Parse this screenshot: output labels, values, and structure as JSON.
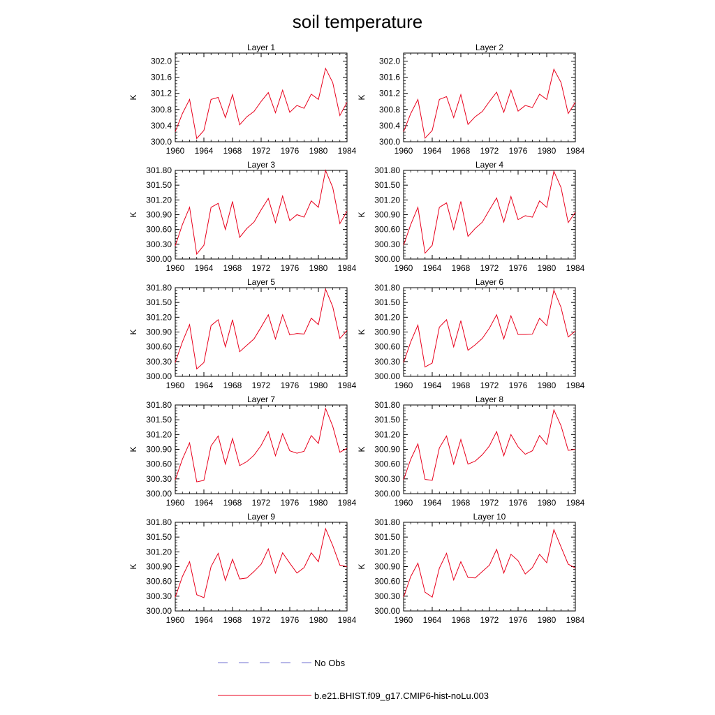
{
  "title": "soil temperature",
  "colors": {
    "model_line": "#e8001c",
    "obs_line": "#7070d0",
    "axis": "#000000",
    "background": "#ffffff"
  },
  "legend": {
    "obs_label": "No Obs",
    "model_label": "b.e21.BHIST.f09_g17.CMIP6-hist-noLu.003",
    "obs_style": "dashed",
    "model_style": "solid",
    "placement": "bottom-center"
  },
  "chart_data": [
    {
      "type": "line",
      "title": "Layer 1",
      "ylabel": "K",
      "xlim": [
        1960,
        1984
      ],
      "ylim": [
        300.0,
        302.2
      ],
      "yticks": [
        "300.0",
        "300.4",
        "300.8",
        "301.2",
        "301.6",
        "302.0"
      ],
      "xticks": [
        "1960",
        "1964",
        "1968",
        "1972",
        "1976",
        "1980",
        "1984"
      ],
      "x": [
        1960,
        1961,
        1962,
        1963,
        1964,
        1965,
        1966,
        1967,
        1968,
        1969,
        1970,
        1971,
        1972,
        1973,
        1974,
        1975,
        1976,
        1977,
        1978,
        1979,
        1980,
        1981,
        1982,
        1983,
        1984
      ],
      "series": [
        {
          "name": "b.e21.BHIST.f09_g17.CMIP6-hist-noLu.003",
          "values": [
            300.25,
            300.7,
            301.05,
            300.08,
            300.28,
            301.05,
            301.1,
            300.6,
            301.17,
            300.42,
            300.62,
            300.75,
            301.0,
            301.22,
            300.72,
            301.28,
            300.73,
            300.9,
            300.83,
            301.18,
            301.05,
            301.82,
            301.47,
            300.65,
            300.98
          ]
        }
      ]
    },
    {
      "type": "line",
      "title": "Layer 2",
      "ylabel": "K",
      "xlim": [
        1960,
        1984
      ],
      "ylim": [
        300.0,
        302.2
      ],
      "yticks": [
        "300.0",
        "300.4",
        "300.8",
        "301.2",
        "301.6",
        "302.0"
      ],
      "xticks": [
        "1960",
        "1964",
        "1968",
        "1972",
        "1976",
        "1980",
        "1984"
      ],
      "x": [
        1960,
        1961,
        1962,
        1963,
        1964,
        1965,
        1966,
        1967,
        1968,
        1969,
        1970,
        1971,
        1972,
        1973,
        1974,
        1975,
        1976,
        1977,
        1978,
        1979,
        1980,
        1981,
        1982,
        1983,
        1984
      ],
      "series": [
        {
          "name": "b.e21.BHIST.f09_g17.CMIP6-hist-noLu.003",
          "values": [
            300.25,
            300.7,
            301.05,
            300.09,
            300.28,
            301.05,
            301.12,
            300.6,
            301.17,
            300.43,
            300.62,
            300.75,
            301.0,
            301.23,
            300.73,
            301.28,
            300.76,
            300.9,
            300.85,
            301.18,
            301.05,
            301.8,
            301.47,
            300.7,
            300.98
          ]
        }
      ]
    },
    {
      "type": "line",
      "title": "Layer 3",
      "ylabel": "K",
      "xlim": [
        1960,
        1984
      ],
      "ylim": [
        300.0,
        301.8
      ],
      "yticks": [
        "300.00",
        "300.30",
        "300.60",
        "300.90",
        "301.20",
        "301.50",
        "301.80"
      ],
      "xticks": [
        "1960",
        "1964",
        "1968",
        "1972",
        "1976",
        "1980",
        "1984"
      ],
      "x": [
        1960,
        1961,
        1962,
        1963,
        1964,
        1965,
        1966,
        1967,
        1968,
        1969,
        1970,
        1971,
        1972,
        1973,
        1974,
        1975,
        1976,
        1977,
        1978,
        1979,
        1980,
        1981,
        1982,
        1983,
        1984
      ],
      "series": [
        {
          "name": "b.e21.BHIST.f09_g17.CMIP6-hist-noLu.003",
          "values": [
            300.27,
            300.7,
            301.05,
            300.1,
            300.28,
            301.05,
            301.13,
            300.6,
            301.17,
            300.44,
            300.62,
            300.75,
            301.0,
            301.23,
            300.74,
            301.28,
            300.78,
            300.9,
            300.85,
            301.18,
            301.05,
            301.8,
            301.45,
            300.72,
            300.97
          ]
        }
      ]
    },
    {
      "type": "line",
      "title": "Layer 4",
      "ylabel": "K",
      "xlim": [
        1960,
        1984
      ],
      "ylim": [
        300.0,
        301.8
      ],
      "yticks": [
        "300.00",
        "300.30",
        "300.60",
        "300.90",
        "301.20",
        "301.50",
        "301.80"
      ],
      "xticks": [
        "1960",
        "1964",
        "1968",
        "1972",
        "1976",
        "1980",
        "1984"
      ],
      "x": [
        1960,
        1961,
        1962,
        1963,
        1964,
        1965,
        1966,
        1967,
        1968,
        1969,
        1970,
        1971,
        1972,
        1973,
        1974,
        1975,
        1976,
        1977,
        1978,
        1979,
        1980,
        1981,
        1982,
        1983,
        1984
      ],
      "series": [
        {
          "name": "b.e21.BHIST.f09_g17.CMIP6-hist-noLu.003",
          "values": [
            300.28,
            300.7,
            301.05,
            300.12,
            300.28,
            301.05,
            301.14,
            300.6,
            301.17,
            300.46,
            300.62,
            300.75,
            301.0,
            301.24,
            300.75,
            301.27,
            300.8,
            300.88,
            300.85,
            301.18,
            301.05,
            301.78,
            301.45,
            300.74,
            300.95
          ]
        }
      ]
    },
    {
      "type": "line",
      "title": "Layer 5",
      "ylabel": "K",
      "xlim": [
        1960,
        1984
      ],
      "ylim": [
        300.0,
        301.8
      ],
      "yticks": [
        "300.00",
        "300.30",
        "300.60",
        "300.90",
        "301.20",
        "301.50",
        "301.80"
      ],
      "xticks": [
        "1960",
        "1964",
        "1968",
        "1972",
        "1976",
        "1980",
        "1984"
      ],
      "x": [
        1960,
        1961,
        1962,
        1963,
        1964,
        1965,
        1966,
        1967,
        1968,
        1969,
        1970,
        1971,
        1972,
        1973,
        1974,
        1975,
        1976,
        1977,
        1978,
        1979,
        1980,
        1981,
        1982,
        1983,
        1984
      ],
      "series": [
        {
          "name": "b.e21.BHIST.f09_g17.CMIP6-hist-noLu.003",
          "values": [
            300.28,
            300.7,
            301.05,
            300.15,
            300.28,
            301.03,
            301.15,
            300.6,
            301.15,
            300.5,
            300.63,
            300.76,
            301.0,
            301.25,
            300.76,
            301.25,
            300.84,
            300.87,
            300.86,
            301.18,
            301.05,
            301.77,
            301.42,
            300.77,
            300.93
          ]
        }
      ]
    },
    {
      "type": "line",
      "title": "Layer 6",
      "ylabel": "K",
      "xlim": [
        1960,
        1984
      ],
      "ylim": [
        300.0,
        301.8
      ],
      "yticks": [
        "300.00",
        "300.30",
        "300.60",
        "300.90",
        "301.20",
        "301.50",
        "301.80"
      ],
      "xticks": [
        "1960",
        "1964",
        "1968",
        "1972",
        "1976",
        "1980",
        "1984"
      ],
      "x": [
        1960,
        1961,
        1962,
        1963,
        1964,
        1965,
        1966,
        1967,
        1968,
        1969,
        1970,
        1971,
        1972,
        1973,
        1974,
        1975,
        1976,
        1977,
        1978,
        1979,
        1980,
        1981,
        1982,
        1983,
        1984
      ],
      "series": [
        {
          "name": "b.e21.BHIST.f09_g17.CMIP6-hist-noLu.003",
          "values": [
            300.28,
            300.7,
            301.04,
            300.19,
            300.27,
            301.0,
            301.15,
            300.6,
            301.13,
            300.53,
            300.64,
            300.77,
            300.98,
            301.25,
            300.76,
            301.23,
            300.85,
            300.85,
            300.86,
            301.18,
            301.03,
            301.75,
            301.4,
            300.8,
            300.92
          ]
        }
      ]
    },
    {
      "type": "line",
      "title": "Layer 7",
      "ylabel": "K",
      "xlim": [
        1960,
        1984
      ],
      "ylim": [
        300.0,
        301.8
      ],
      "yticks": [
        "300.00",
        "300.30",
        "300.60",
        "300.90",
        "301.20",
        "301.50",
        "301.80"
      ],
      "xticks": [
        "1960",
        "1964",
        "1968",
        "1972",
        "1976",
        "1980",
        "1984"
      ],
      "x": [
        1960,
        1961,
        1962,
        1963,
        1964,
        1965,
        1966,
        1967,
        1968,
        1969,
        1970,
        1971,
        1972,
        1973,
        1974,
        1975,
        1976,
        1977,
        1978,
        1979,
        1980,
        1981,
        1982,
        1983,
        1984
      ],
      "series": [
        {
          "name": "b.e21.BHIST.f09_g17.CMIP6-hist-noLu.003",
          "values": [
            300.28,
            300.7,
            301.03,
            300.24,
            300.27,
            300.97,
            301.17,
            300.6,
            301.12,
            300.57,
            300.65,
            300.78,
            300.98,
            301.26,
            300.77,
            301.22,
            300.87,
            300.82,
            300.86,
            301.18,
            301.02,
            301.73,
            301.37,
            300.84,
            300.92
          ]
        }
      ]
    },
    {
      "type": "line",
      "title": "Layer 8",
      "ylabel": "K",
      "xlim": [
        1960,
        1984
      ],
      "ylim": [
        300.0,
        301.8
      ],
      "yticks": [
        "300.00",
        "300.30",
        "300.60",
        "300.90",
        "301.20",
        "301.50",
        "301.80"
      ],
      "xticks": [
        "1960",
        "1964",
        "1968",
        "1972",
        "1976",
        "1980",
        "1984"
      ],
      "x": [
        1960,
        1961,
        1962,
        1963,
        1964,
        1965,
        1966,
        1967,
        1968,
        1969,
        1970,
        1971,
        1972,
        1973,
        1974,
        1975,
        1976,
        1977,
        1978,
        1979,
        1980,
        1981,
        1982,
        1983,
        1984
      ],
      "series": [
        {
          "name": "b.e21.BHIST.f09_g17.CMIP6-hist-noLu.003",
          "values": [
            300.28,
            300.7,
            301.01,
            300.29,
            300.27,
            300.93,
            301.17,
            300.6,
            301.1,
            300.6,
            300.66,
            300.79,
            300.97,
            301.26,
            300.77,
            301.2,
            300.95,
            300.8,
            300.87,
            301.18,
            301.0,
            301.7,
            301.38,
            300.88,
            300.9
          ]
        }
      ]
    },
    {
      "type": "line",
      "title": "Layer 9",
      "ylabel": "K",
      "xlim": [
        1960,
        1984
      ],
      "ylim": [
        300.0,
        301.8
      ],
      "yticks": [
        "300.00",
        "300.30",
        "300.60",
        "300.90",
        "301.20",
        "301.50",
        "301.80"
      ],
      "xticks": [
        "1960",
        "1964",
        "1968",
        "1972",
        "1976",
        "1980",
        "1984"
      ],
      "x": [
        1960,
        1961,
        1962,
        1963,
        1964,
        1965,
        1966,
        1967,
        1968,
        1969,
        1970,
        1971,
        1972,
        1973,
        1974,
        1975,
        1976,
        1977,
        1978,
        1979,
        1980,
        1981,
        1982,
        1983,
        1984
      ],
      "series": [
        {
          "name": "b.e21.BHIST.f09_g17.CMIP6-hist-noLu.003",
          "values": [
            300.28,
            300.7,
            301.0,
            300.33,
            300.27,
            300.9,
            301.17,
            300.62,
            301.05,
            300.65,
            300.67,
            300.8,
            300.95,
            301.26,
            300.77,
            301.18,
            300.97,
            300.77,
            300.88,
            301.18,
            301.0,
            301.67,
            301.33,
            300.93,
            300.9
          ]
        }
      ]
    },
    {
      "type": "line",
      "title": "Layer 10",
      "ylabel": "K",
      "xlim": [
        1960,
        1984
      ],
      "ylim": [
        300.0,
        301.8
      ],
      "yticks": [
        "300.00",
        "300.30",
        "300.60",
        "300.90",
        "301.20",
        "301.50",
        "301.80"
      ],
      "xticks": [
        "1960",
        "1964",
        "1968",
        "1972",
        "1976",
        "1980",
        "1984"
      ],
      "x": [
        1960,
        1961,
        1962,
        1963,
        1964,
        1965,
        1966,
        1967,
        1968,
        1969,
        1970,
        1971,
        1972,
        1973,
        1974,
        1975,
        1976,
        1977,
        1978,
        1979,
        1980,
        1981,
        1982,
        1983,
        1984
      ],
      "series": [
        {
          "name": "b.e21.BHIST.f09_g17.CMIP6-hist-noLu.003",
          "values": [
            300.28,
            300.7,
            300.97,
            300.38,
            300.28,
            300.87,
            301.17,
            300.63,
            301.0,
            300.68,
            300.67,
            300.8,
            300.93,
            301.25,
            300.77,
            301.15,
            301.02,
            300.75,
            300.88,
            301.15,
            300.98,
            301.65,
            301.3,
            300.95,
            300.87
          ]
        }
      ]
    }
  ]
}
